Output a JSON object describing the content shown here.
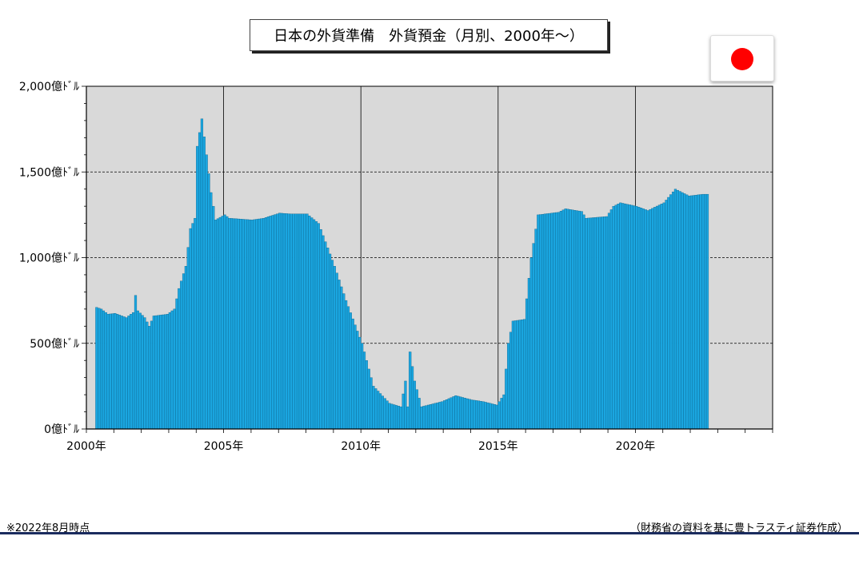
{
  "title": "日本の外貨準備　外貨預金（月別、2000年～）",
  "flag_icon": "japan-flag-icon",
  "colors": {
    "bar": "#1aa6e0",
    "bar_edge": "#0a5f87",
    "plot_bg": "#d9d9d9"
  },
  "footnote": "※2022年8月時点",
  "source": "（財務省の資料を基に豊トラスティ証券作成）",
  "chart_data": {
    "type": "bar",
    "title": "日本の外貨準備　外貨預金（月別、2000年～）",
    "xlabel": "",
    "ylabel": "",
    "ylim": [
      0,
      2000
    ],
    "xlim": [
      2000.0,
      2025.0
    ],
    "grid": "horizontal dashed at 500, 1000, 1500; vertical solid at 2005, 2010, 2015, 2020",
    "y_ticks": [
      {
        "value": 0,
        "label": "0億ﾄﾞﾙ"
      },
      {
        "value": 500,
        "label": "500億ﾄﾞﾙ"
      },
      {
        "value": 1000,
        "label": "1,000億ﾄﾞﾙ"
      },
      {
        "value": 1500,
        "label": "1,500億ﾄﾞﾙ"
      },
      {
        "value": 2000,
        "label": "2,000億ﾄﾞﾙ"
      }
    ],
    "x_ticks": [
      {
        "value": 2000,
        "label": "2000年"
      },
      {
        "value": 2005,
        "label": "2005年"
      },
      {
        "value": 2010,
        "label": "2010年"
      },
      {
        "value": 2015,
        "label": "2015年"
      },
      {
        "value": 2020,
        "label": "2020年"
      }
    ],
    "start": "2000-04",
    "end": "2022-08",
    "keypoints": [
      [
        "2000-04",
        0
      ],
      [
        "2000-05",
        710
      ],
      [
        "2000-07",
        700
      ],
      [
        "2000-10",
        670
      ],
      [
        "2001-01",
        675
      ],
      [
        "2001-06",
        650
      ],
      [
        "2001-09",
        680
      ],
      [
        "2001-10",
        780
      ],
      [
        "2001-11",
        690
      ],
      [
        "2002-02",
        650
      ],
      [
        "2002-04",
        600
      ],
      [
        "2002-06",
        660
      ],
      [
        "2002-12",
        670
      ],
      [
        "2003-03",
        700
      ],
      [
        "2003-05",
        820
      ],
      [
        "2003-08",
        950
      ],
      [
        "2003-10",
        1170
      ],
      [
        "2003-12",
        1230
      ],
      [
        "2004-01",
        1650
      ],
      [
        "2004-02",
        1730
      ],
      [
        "2004-03",
        1810
      ],
      [
        "2004-05",
        1600
      ],
      [
        "2004-07",
        1380
      ],
      [
        "2004-09",
        1220
      ],
      [
        "2005-01",
        1250
      ],
      [
        "2005-03",
        1230
      ],
      [
        "2006-01",
        1220
      ],
      [
        "2006-06",
        1230
      ],
      [
        "2007-01",
        1260
      ],
      [
        "2007-06",
        1255
      ],
      [
        "2008-01",
        1255
      ],
      [
        "2008-06",
        1200
      ],
      [
        "2009-01",
        950
      ],
      [
        "2009-06",
        750
      ],
      [
        "2010-01",
        500
      ],
      [
        "2010-06",
        250
      ],
      [
        "2011-01",
        150
      ],
      [
        "2011-06",
        130
      ],
      [
        "2011-08",
        280
      ],
      [
        "2011-09",
        130
      ],
      [
        "2011-10",
        450
      ],
      [
        "2011-12",
        280
      ],
      [
        "2012-03",
        130
      ],
      [
        "2012-06",
        140
      ],
      [
        "2012-12",
        160
      ],
      [
        "2013-06",
        195
      ],
      [
        "2014-01",
        170
      ],
      [
        "2014-06",
        160
      ],
      [
        "2014-12",
        140
      ],
      [
        "2015-03",
        200
      ],
      [
        "2015-05",
        500
      ],
      [
        "2015-07",
        630
      ],
      [
        "2015-12",
        640
      ],
      [
        "2016-03",
        1000
      ],
      [
        "2016-06",
        1250
      ],
      [
        "2017-03",
        1265
      ],
      [
        "2017-06",
        1285
      ],
      [
        "2018-01",
        1270
      ],
      [
        "2018-03",
        1230
      ],
      [
        "2018-12",
        1240
      ],
      [
        "2019-03",
        1300
      ],
      [
        "2019-06",
        1320
      ],
      [
        "2020-01",
        1300
      ],
      [
        "2020-06",
        1275
      ],
      [
        "2021-01",
        1320
      ],
      [
        "2021-06",
        1400
      ],
      [
        "2021-12",
        1360
      ],
      [
        "2022-06",
        1370
      ],
      [
        "2022-08",
        1370
      ]
    ]
  }
}
